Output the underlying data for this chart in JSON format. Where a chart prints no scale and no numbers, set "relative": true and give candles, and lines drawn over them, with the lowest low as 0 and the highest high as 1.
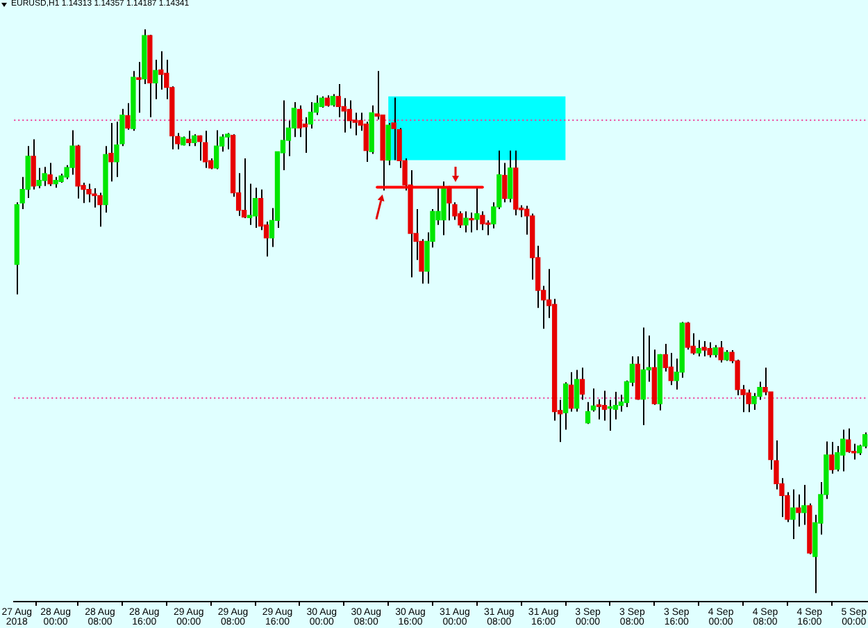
{
  "chart_data": {
    "type": "candlestick",
    "title": "EURUSD,H1 1.14313 1.14357 1.14187 1.14341",
    "relative": true,
    "categories": [
      "27 Aug 2018",
      null,
      null,
      null,
      null,
      null,
      null,
      "28 Aug 00:00",
      null,
      null,
      null,
      null,
      null,
      null,
      null,
      "28 Aug 08:00",
      null,
      null,
      null,
      null,
      null,
      null,
      null,
      "28 Aug 16:00",
      null,
      null,
      null,
      null,
      null,
      null,
      null,
      "29 Aug 00:00",
      null,
      null,
      null,
      null,
      null,
      null,
      null,
      "29 Aug 08:00",
      null,
      null,
      null,
      null,
      null,
      null,
      null,
      "29 Aug 16:00",
      null,
      null,
      null,
      null,
      null,
      null,
      null,
      "30 Aug 00:00",
      null,
      null,
      null,
      null,
      null,
      null,
      null,
      "30 Aug 08:00",
      null,
      null,
      null,
      null,
      null,
      null,
      null,
      "30 Aug 16:00",
      null,
      null,
      null,
      null,
      null,
      null,
      null,
      "31 Aug 00:00",
      null,
      null,
      null,
      null,
      null,
      null,
      null,
      "31 Aug 08:00",
      null,
      null,
      null,
      null,
      null,
      null,
      null,
      "31 Aug 16:00",
      null,
      null,
      null,
      null,
      null,
      null,
      null,
      "3 Sep 00:00",
      null,
      null,
      null,
      null,
      null,
      null,
      null,
      "3 Sep 08:00",
      null,
      null,
      null,
      null,
      null,
      null,
      null,
      "3 Sep 16:00",
      null,
      null,
      null,
      null,
      null,
      null,
      null,
      "4 Sep 00:00",
      null,
      null,
      null,
      null,
      null,
      null,
      null,
      "4 Sep 08:00",
      null,
      null,
      null,
      null,
      null,
      null,
      null,
      "4 Sep 16:00",
      null,
      null,
      null,
      null,
      null,
      null,
      null,
      "5 Sep 00:00",
      null,
      null
    ],
    "ohlc": [
      [
        0.583,
        0.693,
        0.53,
        0.689
      ],
      [
        0.692,
        0.738,
        0.681,
        0.716
      ],
      [
        0.716,
        0.793,
        0.701,
        0.775
      ],
      [
        0.775,
        0.805,
        0.716,
        0.722
      ],
      [
        0.723,
        0.754,
        0.718,
        0.732
      ],
      [
        0.732,
        0.756,
        0.722,
        0.744
      ],
      [
        0.742,
        0.763,
        0.722,
        0.726
      ],
      [
        0.726,
        0.738,
        0.719,
        0.732
      ],
      [
        0.73,
        0.744,
        0.728,
        0.74
      ],
      [
        0.738,
        0.759,
        0.734,
        0.755
      ],
      [
        0.755,
        0.821,
        0.742,
        0.793
      ],
      [
        0.793,
        0.795,
        0.7,
        0.722
      ],
      [
        0.723,
        0.728,
        0.692,
        0.716
      ],
      [
        0.716,
        0.726,
        0.693,
        0.708
      ],
      [
        0.708,
        0.718,
        0.684,
        0.705
      ],
      [
        0.705,
        0.71,
        0.65,
        0.689
      ],
      [
        0.689,
        0.793,
        0.675,
        0.778
      ],
      [
        0.78,
        0.834,
        0.73,
        0.765
      ],
      [
        0.765,
        0.836,
        0.738,
        0.795
      ],
      [
        0.797,
        0.859,
        0.793,
        0.848
      ],
      [
        0.847,
        0.869,
        0.822,
        0.825
      ],
      [
        0.824,
        0.926,
        0.82,
        0.915
      ],
      [
        0.914,
        0.942,
        0.852,
        0.911
      ],
      [
        0.912,
        1,
        0.903,
        0.989
      ],
      [
        0.989,
        0.99,
        0.844,
        0.905
      ],
      [
        0.905,
        0.946,
        0.876,
        0.927
      ],
      [
        0.928,
        0.961,
        0.893,
        0.92
      ],
      [
        0.922,
        0.946,
        0.876,
        0.897
      ],
      [
        0.897,
        0.899,
        0.787,
        0.811
      ],
      [
        0.81,
        0.816,
        0.787,
        0.797
      ],
      [
        0.795,
        0.81,
        0.794,
        0.808
      ],
      [
        0.805,
        0.82,
        0.793,
        0.799
      ],
      [
        0.799,
        0.814,
        0.793,
        0.811
      ],
      [
        0.811,
        0.812,
        0.767,
        0.801
      ],
      [
        0.799,
        0.82,
        0.754,
        0.765
      ],
      [
        0.767,
        0.771,
        0.752,
        0.754
      ],
      [
        0.754,
        0.821,
        0.752,
        0.793
      ],
      [
        0.793,
        0.814,
        0.783,
        0.809
      ],
      [
        0.809,
        0.816,
        0.787,
        0.814
      ],
      [
        0.812,
        0.814,
        0.703,
        0.71
      ],
      [
        0.71,
        0.745,
        0.669,
        0.679
      ],
      [
        0.679,
        0.771,
        0.665,
        0.667
      ],
      [
        0.666,
        0.726,
        0.653,
        0.67
      ],
      [
        0.669,
        0.719,
        0.648,
        0.7
      ],
      [
        0.7,
        0.716,
        0.644,
        0.651
      ],
      [
        0.653,
        0.659,
        0.597,
        0.63
      ],
      [
        0.63,
        0.683,
        0.614,
        0.661
      ],
      [
        0.661,
        0.783,
        0.648,
        0.783
      ],
      [
        0.781,
        0.874,
        0.75,
        0.803
      ],
      [
        0.803,
        0.838,
        0.775,
        0.825
      ],
      [
        0.825,
        0.871,
        0.809,
        0.86
      ],
      [
        0.858,
        0.865,
        0.809,
        0.825
      ],
      [
        0.832,
        0.844,
        0.781,
        0.827
      ],
      [
        0.832,
        0.871,
        0.824,
        0.853
      ],
      [
        0.853,
        0.883,
        0.848,
        0.869
      ],
      [
        0.863,
        0.881,
        0.861,
        0.878
      ],
      [
        0.878,
        0.883,
        0.863,
        0.865
      ],
      [
        0.866,
        0.885,
        0.863,
        0.881
      ],
      [
        0.881,
        0.903,
        0.844,
        0.863
      ],
      [
        0.863,
        0.878,
        0.817,
        0.855
      ],
      [
        0.858,
        0.874,
        0.824,
        0.838
      ],
      [
        0.839,
        0.852,
        0.812,
        0.835
      ],
      [
        0.838,
        0.852,
        0.82,
        0.83
      ],
      [
        0.832,
        0.836,
        0.765,
        0.785
      ],
      [
        0.783,
        0.865,
        0.779,
        0.852
      ],
      [
        0.85,
        0.926,
        0.84,
        0.846
      ],
      [
        0.848,
        0.848,
        0.714,
        0.768
      ],
      [
        0.768,
        0.834,
        0.759,
        0.83
      ],
      [
        0.834,
        0.879,
        0.768,
        0.824
      ],
      [
        0.822,
        0.825,
        0.754,
        0.767
      ],
      [
        0.767,
        0.771,
        0.714,
        0.724
      ],
      [
        0.724,
        0.75,
        0.56,
        0.638
      ],
      [
        0.638,
        0.681,
        0.591,
        0.624
      ],
      [
        0.624,
        0.628,
        0.549,
        0.571
      ],
      [
        0.571,
        0.64,
        0.549,
        0.624
      ],
      [
        0.624,
        0.681,
        0.613,
        0.677
      ],
      [
        0.662,
        0.718,
        0.653,
        0.677
      ],
      [
        0.662,
        0.73,
        0.635,
        0.719
      ],
      [
        0.719,
        0.722,
        0.661,
        0.692
      ],
      [
        0.689,
        0.693,
        0.662,
        0.669
      ],
      [
        0.673,
        0.677,
        0.648,
        0.653
      ],
      [
        0.653,
        0.677,
        0.64,
        0.665
      ],
      [
        0.663,
        0.675,
        0.64,
        0.662
      ],
      [
        0.663,
        0.718,
        0.644,
        0.673
      ],
      [
        0.67,
        0.677,
        0.644,
        0.655
      ],
      [
        0.655,
        0.661,
        0.635,
        0.654
      ],
      [
        0.655,
        0.693,
        0.647,
        0.685
      ],
      [
        0.685,
        0.785,
        0.681,
        0.742
      ],
      [
        0.741,
        0.763,
        0.693,
        0.7
      ],
      [
        0.7,
        0.785,
        0.693,
        0.754
      ],
      [
        0.754,
        0.785,
        0.67,
        0.681
      ],
      [
        0.683,
        0.688,
        0.667,
        0.68
      ],
      [
        0.681,
        0.687,
        0.636,
        0.669
      ],
      [
        0.669,
        0.673,
        0.556,
        0.595
      ],
      [
        0.595,
        0.616,
        0.506,
        0.537
      ],
      [
        0.537,
        0.545,
        0.469,
        0.52
      ],
      [
        0.52,
        0.575,
        0.488,
        0.51
      ],
      [
        0.512,
        0.522,
        0.306,
        0.322
      ],
      [
        0.324,
        0.343,
        0.268,
        0.318
      ],
      [
        0.32,
        0.374,
        0.29,
        0.371
      ],
      [
        0.369,
        0.392,
        0.322,
        0.328
      ],
      [
        0.328,
        0.396,
        0.322,
        0.379
      ],
      [
        0.379,
        0.4,
        0.343,
        0.353
      ],
      [
        0.302,
        0.339,
        0.3,
        0.322
      ],
      [
        0.325,
        0.363,
        0.322,
        0.332
      ],
      [
        0.334,
        0.344,
        0.308,
        0.331
      ],
      [
        0.333,
        0.359,
        0.306,
        0.326
      ],
      [
        0.328,
        0.343,
        0.288,
        0.33
      ],
      [
        0.326,
        0.357,
        0.308,
        0.333
      ],
      [
        0.333,
        0.352,
        0.322,
        0.339
      ],
      [
        0.338,
        0.377,
        0.33,
        0.375
      ],
      [
        0.374,
        0.42,
        0.367,
        0.406
      ],
      [
        0.406,
        0.42,
        0.343,
        0.344
      ],
      [
        0.344,
        0.471,
        0.298,
        0.396
      ],
      [
        0.396,
        0.457,
        0.375,
        0.4
      ],
      [
        0.4,
        0.432,
        0.334,
        0.336
      ],
      [
        0.336,
        0.424,
        0.324,
        0.423
      ],
      [
        0.423,
        0.442,
        0.393,
        0.4
      ],
      [
        0.401,
        0.426,
        0.369,
        0.377
      ],
      [
        0.377,
        0.416,
        0.361,
        0.392
      ],
      [
        0.392,
        0.481,
        0.382,
        0.479
      ],
      [
        0.479,
        0.481,
        0.432,
        0.436
      ],
      [
        0.438,
        0.461,
        0.423,
        0.426
      ],
      [
        0.426,
        0.449,
        0.42,
        0.434
      ],
      [
        0.436,
        0.447,
        0.42,
        0.431
      ],
      [
        0.434,
        0.445,
        0.418,
        0.423
      ],
      [
        0.423,
        0.44,
        0.418,
        0.435
      ],
      [
        0.435,
        0.447,
        0.409,
        0.414
      ],
      [
        0.414,
        0.431,
        0.412,
        0.427
      ],
      [
        0.427,
        0.431,
        0.408,
        0.412
      ],
      [
        0.412,
        0.414,
        0.351,
        0.361
      ],
      [
        0.361,
        0.369,
        0.321,
        0.352
      ],
      [
        0.355,
        0.361,
        0.321,
        0.336
      ],
      [
        0.336,
        0.355,
        0.325,
        0.349
      ],
      [
        0.349,
        0.375,
        0.343,
        0.365
      ],
      [
        0.365,
        0.4,
        0.351,
        0.357
      ],
      [
        0.357,
        0.357,
        0.219,
        0.237
      ],
      [
        0.235,
        0.271,
        0.184,
        0.194
      ],
      [
        0.194,
        0.204,
        0.135,
        0.173
      ],
      [
        0.173,
        0.179,
        0.126,
        0.131
      ],
      [
        0.131,
        0.184,
        0.096,
        0.151
      ],
      [
        0.151,
        0.175,
        0.118,
        0.143
      ],
      [
        0.143,
        0.192,
        0.121,
        0.155
      ],
      [
        0.155,
        0.159,
        0.069,
        0.071
      ],
      [
        0.065,
        0.139,
        0,
        0.125
      ],
      [
        0.124,
        0.197,
        0.104,
        0.175
      ],
      [
        0.175,
        0.269,
        0.167,
        0.245
      ],
      [
        0.245,
        0.268,
        0.212,
        0.219
      ],
      [
        0.22,
        0.261,
        0.216,
        0.249
      ],
      [
        0.245,
        0.29,
        0.216,
        0.273
      ],
      [
        0.272,
        0.292,
        0.249,
        0.251
      ],
      [
        0.251,
        0.265,
        0.237,
        0.249
      ],
      [
        0.249,
        0.263,
        0.245,
        0.261
      ],
      [
        0.261,
        0.285,
        0.257,
        0.281
      ]
    ],
    "colors": [
      "#00e600",
      "#00e600",
      "#00e600",
      "#e60000",
      "#00e600",
      "#00e600",
      "#e60000",
      "#00e600",
      "#00e600",
      "#00e600",
      "#00e600",
      "#e60000",
      "#e60000",
      "#e60000",
      "#e60000",
      "#e60000",
      "#00e600",
      "#e60000",
      "#00e600",
      "#00e600",
      "#e60000",
      "#00e600",
      "#e60000",
      "#00e600",
      "#e60000",
      "#00e600",
      "#e60000",
      "#e60000",
      "#e60000",
      "#e60000",
      "#00e600",
      "#e60000",
      "#00e600",
      "#e60000",
      "#e60000",
      "#e60000",
      "#00e600",
      "#00e600",
      "#00e600",
      "#e60000",
      "#e60000",
      "#e60000",
      "#00e600",
      "#00e600",
      "#e60000",
      "#e60000",
      "#00e600",
      "#00e600",
      "#00e600",
      "#00e600",
      "#00e600",
      "#e60000",
      "#e60000",
      "#00e600",
      "#00e600",
      "#00e600",
      "#e60000",
      "#00e600",
      "#e60000",
      "#e60000",
      "#e60000",
      "#e60000",
      "#e60000",
      "#e60000",
      "#00e600",
      "#e60000",
      "#e60000",
      "#00e600",
      "#e60000",
      "#e60000",
      "#e60000",
      "#e60000",
      "#e60000",
      "#e60000",
      "#00e600",
      "#00e600",
      "#00e600",
      "#00e600",
      "#e60000",
      "#e60000",
      "#e60000",
      "#00e600",
      "#e60000",
      "#00e600",
      "#e60000",
      "#e60000",
      "#00e600",
      "#00e600",
      "#e60000",
      "#00e600",
      "#e60000",
      "#e60000",
      "#e60000",
      "#e60000",
      "#e60000",
      "#e60000",
      "#e60000",
      "#e60000",
      "#e60000",
      "#00e600",
      "#e60000",
      "#00e600",
      "#e60000",
      "#00e600",
      "#00e600",
      "#e60000",
      "#e60000",
      "#00e600",
      "#00e600",
      "#00e600",
      "#00e600",
      "#00e600",
      "#e60000",
      "#00e600",
      "#00e600",
      "#e60000",
      "#00e600",
      "#e60000",
      "#e60000",
      "#00e600",
      "#00e600",
      "#e60000",
      "#e60000",
      "#00e600",
      "#e60000",
      "#e60000",
      "#00e600",
      "#e60000",
      "#00e600",
      "#e60000",
      "#e60000",
      "#e60000",
      "#e60000",
      "#00e600",
      "#00e600",
      "#e60000",
      "#e60000",
      "#e60000",
      "#e60000",
      "#e60000",
      "#00e600",
      "#e60000",
      "#00e600",
      "#e60000",
      "#00e600",
      "#00e600",
      "#00e600",
      "#e60000",
      "#00e600",
      "#00e600",
      "#e60000",
      "#e60000",
      "#00e600",
      "#00e600"
    ],
    "ref_lines": [
      {
        "axis": "y",
        "value": 0.839,
        "color": "#f0409a",
        "line_style": "dotted"
      },
      {
        "axis": "y",
        "value": 0.347,
        "color": "#f0409a",
        "line_style": "dotted"
      }
    ],
    "series": [
      {
        "type": "line",
        "color": "#00ffff",
        "values": [
          null,
          null,
          null,
          null,
          null,
          null,
          null,
          null,
          null,
          null,
          null,
          null,
          null,
          null,
          null,
          null,
          null,
          null,
          null,
          null,
          null,
          null,
          null,
          null,
          null,
          null,
          null,
          null,
          null,
          null,
          null,
          null,
          null,
          null,
          null,
          null,
          null,
          null,
          null,
          null,
          null,
          null,
          null,
          null,
          null,
          null,
          null,
          null,
          null,
          null,
          null,
          null,
          null,
          null,
          null,
          null,
          null,
          null,
          null,
          null,
          null,
          null,
          null,
          null,
          null,
          null,
          null,
          null,
          null,
          null,
          null,
          null,
          null,
          null,
          null,
          null,
          null,
          null,
          null,
          null,
          null,
          null,
          null,
          null,
          null,
          null,
          null,
          null,
          null,
          null,
          null,
          null,
          null,
          null,
          null,
          null,
          null,
          null,
          null,
          null,
          null,
          null,
          null,
          null,
          null,
          null,
          null,
          null,
          null,
          null,
          null,
          null,
          null,
          null,
          null,
          null,
          null,
          null,
          null,
          null,
          null,
          null,
          null,
          null,
          null,
          null,
          null,
          null,
          null,
          null,
          null,
          null,
          null,
          null,
          null,
          null,
          null,
          null,
          null,
          null,
          null,
          null,
          null,
          null,
          null,
          null,
          null,
          null,
          null,
          null,
          null,
          null,
          null,
          null
        ],
        "lower": [
          null,
          null,
          null,
          null,
          null,
          null,
          null,
          null,
          null,
          null,
          null,
          null,
          null,
          null,
          null,
          null,
          null,
          null,
          null,
          null,
          null,
          null,
          null,
          null,
          null,
          null,
          null,
          null,
          null,
          null,
          null,
          null,
          null,
          null,
          null,
          null,
          null,
          null,
          null,
          null,
          null,
          null,
          null,
          null,
          null,
          null,
          null,
          null,
          null,
          null,
          null,
          null,
          null,
          null,
          null,
          null,
          null,
          null,
          null,
          null,
          null,
          null,
          null,
          null,
          null,
          null,
          null,
          0.768,
          0.768,
          0.768,
          0.768,
          0.768,
          0.768,
          0.768,
          0.768,
          0.768,
          0.768,
          0.768,
          0.768,
          0.768,
          0.768,
          0.768,
          0.768,
          0.768,
          0.768,
          0.768,
          0.768,
          0.768,
          0.768,
          0.768,
          0.768,
          0.768,
          0.768,
          0.768,
          0.768,
          0.768,
          0.768,
          0.768,
          0.768,
          0.768,
          null,
          null,
          null,
          null,
          null,
          null,
          null,
          null,
          null,
          null,
          null,
          null,
          null,
          null,
          null,
          null,
          null,
          null,
          null,
          null,
          null,
          null,
          null,
          null,
          null,
          null,
          null,
          null,
          null,
          null,
          null,
          null,
          null,
          null,
          null,
          null,
          null,
          null,
          null,
          null,
          null,
          null,
          null,
          null,
          null,
          null,
          null,
          null,
          null,
          null,
          null,
          null,
          null,
          null
        ],
        "upper": [
          null,
          null,
          null,
          null,
          null,
          null,
          null,
          null,
          null,
          null,
          null,
          null,
          null,
          null,
          null,
          null,
          null,
          null,
          null,
          null,
          null,
          null,
          null,
          null,
          null,
          null,
          null,
          null,
          null,
          null,
          null,
          null,
          null,
          null,
          null,
          null,
          null,
          null,
          null,
          null,
          null,
          null,
          null,
          null,
          null,
          null,
          null,
          null,
          null,
          null,
          null,
          null,
          null,
          null,
          null,
          null,
          null,
          null,
          null,
          null,
          null,
          null,
          null,
          null,
          null,
          null,
          null,
          0.881,
          0.881,
          0.881,
          0.881,
          0.881,
          0.881,
          0.881,
          0.881,
          0.881,
          0.881,
          0.881,
          0.881,
          0.881,
          0.881,
          0.881,
          0.881,
          0.881,
          0.881,
          0.881,
          0.881,
          0.881,
          0.881,
          0.881,
          0.881,
          0.881,
          0.881,
          0.881,
          0.881,
          0.881,
          0.881,
          0.881,
          0.881,
          0.881,
          null,
          null,
          null,
          null,
          null,
          null,
          null,
          null,
          null,
          null,
          null,
          null,
          null,
          null,
          null,
          null,
          null,
          null,
          null,
          null,
          null,
          null,
          null,
          null,
          null,
          null,
          null,
          null,
          null,
          null,
          null,
          null,
          null,
          null,
          null,
          null,
          null,
          null,
          null,
          null,
          null,
          null,
          null,
          null,
          null,
          null,
          null,
          null,
          null,
          null,
          null,
          null,
          null,
          null
        ]
      },
      {
        "type": "line",
        "color": "#ff0000",
        "values": [
          null,
          null,
          null,
          null,
          null,
          null,
          null,
          null,
          null,
          null,
          null,
          null,
          null,
          null,
          null,
          null,
          null,
          null,
          null,
          null,
          null,
          null,
          null,
          null,
          null,
          null,
          null,
          null,
          null,
          null,
          null,
          null,
          null,
          null,
          null,
          null,
          null,
          null,
          null,
          null,
          null,
          null,
          null,
          null,
          null,
          null,
          null,
          null,
          null,
          null,
          null,
          null,
          null,
          null,
          null,
          null,
          null,
          null,
          null,
          null,
          null,
          null,
          null,
          null,
          null,
          0.72,
          0.72,
          0.72,
          0.72,
          0.72,
          0.72,
          0.72,
          0.72,
          0.72,
          0.72,
          0.72,
          0.72,
          0.72,
          0.72,
          0.72,
          0.72,
          0.72,
          0.72,
          0.72,
          0.72,
          null,
          null,
          null,
          null,
          null,
          null,
          null,
          null,
          null,
          null,
          null,
          null,
          null,
          null,
          null,
          null,
          null,
          null,
          null,
          null,
          null,
          null,
          null,
          null,
          null,
          null,
          null,
          null,
          null,
          null,
          null,
          null,
          null,
          null,
          null,
          null,
          null,
          null,
          null,
          null,
          null,
          null,
          null,
          null,
          null,
          null,
          null,
          null,
          null,
          null,
          null,
          null,
          null,
          null,
          null,
          null,
          null,
          null,
          null,
          null,
          null,
          null,
          null,
          null,
          null,
          null,
          null,
          null,
          null
        ]
      }
    ]
  }
}
